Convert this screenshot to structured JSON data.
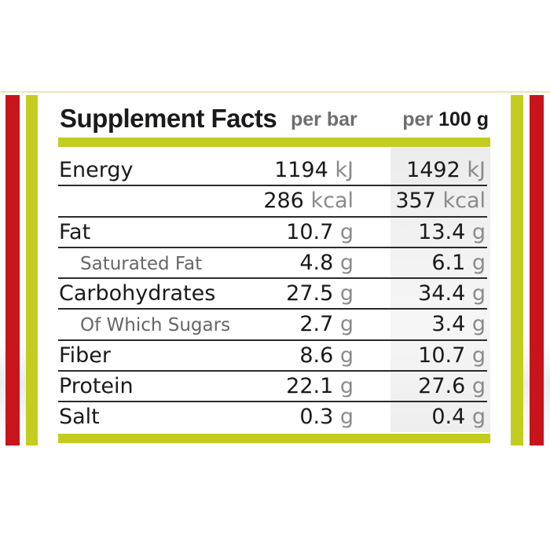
{
  "colors": {
    "accent_green": "#c3cc20",
    "accent_red": "#c8141b",
    "text_dark": "#1a1a1a",
    "text_gray": "#6e6e6e",
    "unit_gray": "#8a8a8a",
    "column_shade": "#efefef"
  },
  "header": {
    "title": "Supplement Facts",
    "col1_label": "per bar",
    "col2_prefix": "per",
    "col2_amount": "100 g"
  },
  "rows": [
    {
      "label": "Energy",
      "sub": false,
      "v1": "1194",
      "u1": "kJ",
      "v2": "1492",
      "u2": "kJ"
    },
    {
      "label": "",
      "sub": false,
      "v1": "286",
      "u1": "kcal",
      "v2": "357",
      "u2": "kcal"
    },
    {
      "label": "Fat",
      "sub": false,
      "v1": "10.7",
      "u1": "g",
      "v2": "13.4",
      "u2": "g"
    },
    {
      "label": "Saturated Fat",
      "sub": true,
      "v1": "4.8",
      "u1": "g",
      "v2": "6.1",
      "u2": "g"
    },
    {
      "label": "Carbohydrates",
      "sub": false,
      "v1": "27.5",
      "u1": "g",
      "v2": "34.4",
      "u2": "g"
    },
    {
      "label": "Of Which Sugars",
      "sub": true,
      "v1": "2.7",
      "u1": "g",
      "v2": "3.4",
      "u2": "g"
    },
    {
      "label": "Fiber",
      "sub": false,
      "v1": "8.6",
      "u1": "g",
      "v2": "10.7",
      "u2": "g"
    },
    {
      "label": "Protein",
      "sub": false,
      "v1": "22.1",
      "u1": "g",
      "v2": "27.6",
      "u2": "g"
    },
    {
      "label": "Salt",
      "sub": false,
      "v1": "0.3",
      "u1": "g",
      "v2": "0.4",
      "u2": "g"
    }
  ]
}
